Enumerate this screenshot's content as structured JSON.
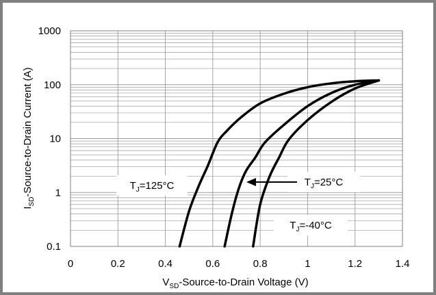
{
  "chart_data": {
    "type": "line",
    "title": "",
    "xlabel": {
      "main": "V",
      "sub": "SD",
      "rest": "-Source-to-Drain Voltage  (V)"
    },
    "ylabel": {
      "main": "I",
      "sub": "SD",
      "rest": "-Source-to-Drain Current (A)"
    },
    "xlim": [
      0,
      1.4
    ],
    "ylim": [
      0.1,
      1000
    ],
    "yscale": "log",
    "grid": true,
    "x_ticks": [
      0,
      0.2,
      0.4,
      0.6,
      0.8,
      1,
      1.2,
      1.4
    ],
    "x_tick_labels": [
      "0",
      "0.2",
      "0.4",
      "0.6",
      "0.8",
      "1",
      "1.2",
      "1.4"
    ],
    "y_ticks": [
      0.1,
      1,
      10,
      100,
      1000
    ],
    "y_tick_labels": [
      "0.1",
      "1",
      "10",
      "100",
      "1000"
    ],
    "series": [
      {
        "id": "t125",
        "x": [
          0.46,
          0.5,
          0.54,
          0.58,
          0.62,
          0.66,
          0.72,
          0.8,
          0.9,
          1.0,
          1.1,
          1.2,
          1.3
        ],
        "y": [
          0.1,
          0.45,
          1.3,
          3.2,
          8.5,
          14,
          25,
          45,
          68,
          90,
          106,
          116,
          120
        ]
      },
      {
        "id": "t25",
        "x": [
          0.65,
          0.68,
          0.71,
          0.74,
          0.78,
          0.82,
          0.9,
          1.0,
          1.1,
          1.2,
          1.3
        ],
        "y": [
          0.1,
          0.4,
          1.2,
          2.5,
          4.5,
          8.5,
          18,
          40,
          70,
          100,
          120
        ]
      },
      {
        "id": "t40",
        "x": [
          0.77,
          0.8,
          0.84,
          0.88,
          0.92,
          1.0,
          1.1,
          1.2,
          1.3
        ],
        "y": [
          0.1,
          0.6,
          2.0,
          4.5,
          9.5,
          22,
          48,
          85,
          120
        ]
      }
    ],
    "annotations": [
      {
        "id": "t125",
        "text": {
          "main": "T",
          "sub": "J",
          "rest": "=125°C"
        }
      },
      {
        "id": "t25",
        "text": {
          "main": "T",
          "sub": "J",
          "rest": "=25°C"
        }
      },
      {
        "id": "t40",
        "text": {
          "main": "T",
          "sub": "J",
          "rest": "=-40°C"
        }
      }
    ],
    "colors": {
      "line": "#000000",
      "grid": "#9a9a9a",
      "frame": "#808080"
    }
  }
}
